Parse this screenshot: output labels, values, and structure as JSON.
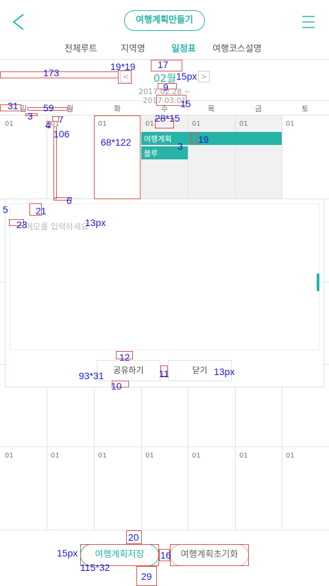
{
  "header": {
    "title": "여행계획만들기",
    "back_icon": "chevron-left-icon",
    "menu_icon": "hamburger-icon"
  },
  "tabs": [
    "전체루트",
    "지역명",
    "일정표",
    "여행코스설명"
  ],
  "active_tab_index": 2,
  "month": {
    "label": "02월",
    "range": "2017.02.28 ~ 2017.03.01"
  },
  "weekdays": [
    "일",
    "월",
    "화",
    "수",
    "목",
    "금",
    "토"
  ],
  "day_label": "01",
  "events": {
    "plan": "여행계획",
    "blue": "블루"
  },
  "popup": {
    "placeholder": "메모를 입력하세요",
    "share": "공유하기",
    "close": "닫기"
  },
  "footer": {
    "save": "여행계획저장",
    "reset": "여행계획초기화"
  },
  "annotations": {
    "a173": "173",
    "a1919": "19*19",
    "a17": "17",
    "a15px": "15px",
    "a9": "9",
    "a15": "15",
    "a31": "31",
    "a59": "59",
    "a3": "3",
    "a7": "7",
    "a4": "4",
    "a106": "106",
    "a68x122": "68*122",
    "a28x15": "28*15",
    "a3b": "3",
    "a19": "19",
    "a6": "6",
    "a5": "5",
    "a21": "21",
    "a23": "23",
    "a13px": "13px",
    "a12": "12",
    "a93x31": "93*31",
    "a11": "11",
    "a13pxb": "13px",
    "a10": "10",
    "a20": "20",
    "a15pxb": "15px",
    "a16": "16",
    "a115x32": "115*32",
    "a29": "29"
  },
  "colors": {
    "accent": "#27b3a5",
    "grid": "#e2e2e2",
    "annotation": "#1a1adb",
    "measure_box": "#d9534f"
  }
}
